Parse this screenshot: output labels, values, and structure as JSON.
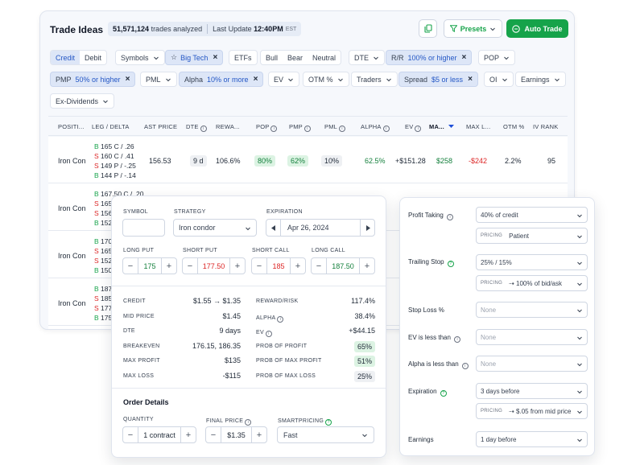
{
  "header": {
    "title": "Trade Ideas",
    "trades_count": "51,571,124",
    "trades_label": "trades analyzed",
    "update_label": "Last Update",
    "update_time": "12:40PM",
    "update_tz": "EST",
    "presets_label": "Presets",
    "autotrade_label": "Auto Trade"
  },
  "filters": {
    "credit": "Credit",
    "debit": "Debit",
    "symbols": "Symbols",
    "bigtech": "Big Tech",
    "etfs": "ETFs",
    "bull": "Bull",
    "bear": "Bear",
    "neutral": "Neutral",
    "dte": "DTE",
    "rr_label": "R/R",
    "rr_value": "100% or higher",
    "pop": "POP",
    "pmp_label": "PMP",
    "pmp_value": "50% or higher",
    "pml": "PML",
    "alpha_label": "Alpha",
    "alpha_value": "10% or more",
    "ev": "EV",
    "otm": "OTM %",
    "traders": "Traders",
    "spread_label": "Spread",
    "spread_value": "$5 or less",
    "oi": "OI",
    "earnings": "Earnings",
    "exdiv": "Ex-Dividends"
  },
  "columns": [
    "POSITI...",
    "LEG / DELTA",
    "AST PRICE",
    "DTE",
    "REWA...",
    "POP",
    "PMP",
    "PML",
    "ALPHA",
    "EV",
    "MA...",
    "MAX L...",
    "OTM %",
    "IV RANK"
  ],
  "rows": [
    {
      "position": "Iron Con",
      "legs": [
        {
          "side": "B",
          "text": "165 C / .26"
        },
        {
          "side": "S",
          "text": "160 C / .41"
        },
        {
          "side": "S",
          "text": "149 P / -.25"
        },
        {
          "side": "B",
          "text": "144 P / -.14"
        }
      ],
      "price": "156.53",
      "dte": "9 d",
      "reward": "106.6%",
      "pop": "80%",
      "pmp": "62%",
      "pml": "10%",
      "alpha": "62.5%",
      "ev": "+$151.28",
      "max_profit": "$258",
      "max_loss": "-$242",
      "otm": "2.2%",
      "iv_rank": "95"
    },
    {
      "position": "Iron Con",
      "legs": [
        {
          "side": "B",
          "text": "167.50 C / .20"
        },
        {
          "side": "S",
          "text": "165"
        },
        {
          "side": "S",
          "text": "156"
        },
        {
          "side": "B",
          "text": "152"
        }
      ]
    },
    {
      "position": "Iron Con",
      "legs": [
        {
          "side": "B",
          "text": "170"
        },
        {
          "side": "S",
          "text": "165"
        },
        {
          "side": "S",
          "text": "152"
        },
        {
          "side": "B",
          "text": "150"
        }
      ]
    },
    {
      "position": "Iron Con",
      "legs": [
        {
          "side": "B",
          "text": "187"
        },
        {
          "side": "S",
          "text": "185"
        },
        {
          "side": "S",
          "text": "177"
        },
        {
          "side": "B",
          "text": "175"
        }
      ]
    }
  ],
  "detail": {
    "symbol_label": "SYMBOL",
    "symbol_value": "",
    "strategy_label": "STRATEGY",
    "strategy_value": "Iron condor",
    "expiration_label": "EXPIRATION",
    "expiration_value": "Apr 26, 2024",
    "long_put_label": "LONG PUT",
    "long_put": "175",
    "short_put_label": "SHORT PUT",
    "short_put": "177.50",
    "short_call_label": "SHORT CALL",
    "short_call": "185",
    "long_call_label": "LONG CALL",
    "long_call": "187.50",
    "left_stats": [
      {
        "k": "CREDIT",
        "v": "$1.55 → $1.35"
      },
      {
        "k": "MID PRICE",
        "v": "$1.45"
      },
      {
        "k": "DTE",
        "v": "9 days"
      },
      {
        "k": "BREAKEVEN",
        "v": "176.15, 186.35"
      },
      {
        "k": "MAX PROFIT",
        "v": "$135"
      },
      {
        "k": "MAX LOSS",
        "v": "-$115"
      }
    ],
    "right_stats": [
      {
        "k": "REWARD/RISK",
        "v": "117.4%"
      },
      {
        "k": "ALPHA",
        "v": "38.4%"
      },
      {
        "k": "EV",
        "v": "+$44.15"
      },
      {
        "k": "PROB OF PROFIT",
        "v": "65%"
      },
      {
        "k": "PROB OF MAX PROFIT",
        "v": "51%"
      },
      {
        "k": "PROB OF MAX LOSS",
        "v": "25%"
      }
    ],
    "order_title": "Order Details",
    "quantity_label": "QUANTITY",
    "quantity": "1 contract",
    "final_price_label": "FINAL PRICE",
    "final_price": "$1.35",
    "smartpricing_label": "SMARTPRICING",
    "smartpricing": "Fast"
  },
  "rules": {
    "profit_taking": "Profit Taking",
    "profit_value": "40% of credit",
    "pricing_tag": "PRICING",
    "profit_pricing": "Patient",
    "trailing_stop": "Trailing Stop",
    "trailing_value": "25% / 15%",
    "trailing_pricing": "⇢ 100% of bid/ask",
    "stop_loss": "Stop Loss %",
    "stop_loss_value": "None",
    "ev_less": "EV is less than",
    "ev_less_value": "None",
    "alpha_less": "Alpha is less than",
    "alpha_less_value": "None",
    "expiration": "Expiration",
    "expiration_value": "3 days before",
    "expiration_pricing": "⇢ $.05 from mid price",
    "earnings": "Earnings",
    "earnings_value": "1 day before"
  },
  "colors": {
    "accent_green": "#16a34a",
    "filter_blue": "#2457c5",
    "loss_red": "#dc2626"
  }
}
